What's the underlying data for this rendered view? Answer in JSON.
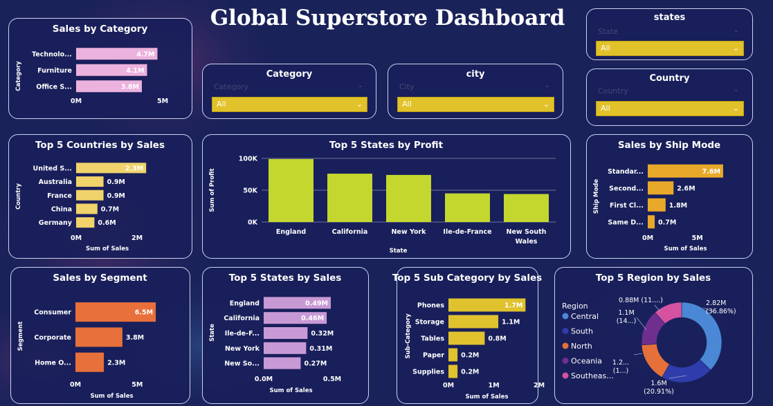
{
  "dashboard_title": "Global Superstore Dashboard",
  "colors": {
    "background": "#1a225a",
    "pink": "#ebb2dd",
    "yellow_light": "#f0d36a",
    "lime": "#c3d72e",
    "orange_ship": "#e8a92a",
    "orange_segment": "#e8703a",
    "purple": "#c89ad5",
    "yellow_sub": "#dfc22e",
    "slicer": "#e2c22a"
  },
  "slicers": {
    "states": {
      "title": "states",
      "field": "State",
      "value": "All"
    },
    "category": {
      "title": "Category",
      "field": "Category",
      "value": "All"
    },
    "city": {
      "title": "city",
      "field": "City",
      "value": "All"
    },
    "country": {
      "title": "Country",
      "field": "Country",
      "value": "All"
    }
  },
  "chart_data": [
    {
      "id": "sales_by_category",
      "type": "bar",
      "orientation": "horizontal",
      "title": "Sales by Category",
      "ylabel": "Category",
      "xlabel": "",
      "categories": [
        "Technolo...",
        "Furniture",
        "Office S..."
      ],
      "values": [
        4.7,
        4.1,
        3.8
      ],
      "labels": [
        "4.7M",
        "4.1M",
        "3.8M"
      ],
      "xlim": [
        0,
        5
      ],
      "ticks": [
        0,
        5
      ],
      "tick_labels": [
        "0M",
        "5M"
      ],
      "color": "#ebb2dd"
    },
    {
      "id": "top5_countries",
      "type": "bar",
      "orientation": "horizontal",
      "title": "Top 5 Countries by Sales",
      "ylabel": "Country",
      "xlabel": "Sum of Sales",
      "categories": [
        "United S...",
        "Australia",
        "France",
        "China",
        "Germany"
      ],
      "values": [
        2.3,
        0.9,
        0.9,
        0.7,
        0.6
      ],
      "labels": [
        "2.3M",
        "0.9M",
        "0.9M",
        "0.7M",
        "0.6M"
      ],
      "xlim": [
        0,
        2.5
      ],
      "ticks": [
        0,
        2
      ],
      "tick_labels": [
        "0M",
        "2M"
      ],
      "color": "#f0d36a"
    },
    {
      "id": "top5_states_profit",
      "type": "bar",
      "orientation": "vertical",
      "title": "Top 5 States by Profit",
      "ylabel": "Sum of Profit",
      "xlabel": "State",
      "categories": [
        "England",
        "California",
        "New York",
        "Ile-de-France",
        "New South Wales"
      ],
      "values": [
        99,
        76,
        74,
        45,
        44
      ],
      "ylim": [
        0,
        100
      ],
      "ticks": [
        0,
        50,
        100
      ],
      "tick_labels": [
        "0K",
        "50K",
        "100K"
      ],
      "color": "#c3d72e"
    },
    {
      "id": "sales_by_ship_mode",
      "type": "bar",
      "orientation": "horizontal",
      "title": "Sales by Ship Mode",
      "ylabel": "Ship Mode",
      "xlabel": "Sum of Sales",
      "categories": [
        "Standar...",
        "Second...",
        "First Cl...",
        "Same D..."
      ],
      "values": [
        7.6,
        2.6,
        1.8,
        0.7
      ],
      "labels": [
        "7.6M",
        "2.6M",
        "1.8M",
        "0.7M"
      ],
      "xlim": [
        0,
        9
      ],
      "ticks": [
        0,
        5
      ],
      "tick_labels": [
        "0M",
        "5M"
      ],
      "color": "#e8a92a"
    },
    {
      "id": "sales_by_segment",
      "type": "bar",
      "orientation": "horizontal",
      "title": "Sales by Segment",
      "ylabel": "Segment",
      "xlabel": "Sum of Sales",
      "categories": [
        "Consumer",
        "Corporate",
        "Home O..."
      ],
      "values": [
        6.5,
        3.8,
        2.3
      ],
      "labels": [
        "6.5M",
        "3.8M",
        "2.3M"
      ],
      "xlim": [
        0,
        7
      ],
      "ticks": [
        0,
        5
      ],
      "tick_labels": [
        "0M",
        "5M"
      ],
      "color": "#e8703a"
    },
    {
      "id": "top5_states_sales",
      "type": "bar",
      "orientation": "horizontal",
      "title": "Top 5 States by Sales",
      "ylabel": "State",
      "xlabel": "Sum of Sales",
      "categories": [
        "England",
        "California",
        "Ile-de-F...",
        "New York",
        "New So..."
      ],
      "values": [
        0.49,
        0.46,
        0.32,
        0.31,
        0.27
      ],
      "labels": [
        "0.49M",
        "0.46M",
        "0.32M",
        "0.31M",
        "0.27M"
      ],
      "xlim": [
        0,
        0.5
      ],
      "ticks": [
        0,
        0.5
      ],
      "tick_labels": [
        "0.0M",
        "0.5M"
      ],
      "color": "#c89ad5"
    },
    {
      "id": "top5_subcategory",
      "type": "bar",
      "orientation": "horizontal",
      "title": "Top 5 Sub Category by Sales",
      "ylabel": "Sub-Category",
      "xlabel": "Sum of Sales",
      "categories": [
        "Phones",
        "Storage",
        "Tables",
        "Paper",
        "Supplies"
      ],
      "values": [
        1.7,
        1.1,
        0.8,
        0.2,
        0.2
      ],
      "labels": [
        "1.7M",
        "1.1M",
        "0.8M",
        "0.2M",
        "0.2M"
      ],
      "xlim": [
        0,
        2
      ],
      "ticks": [
        0,
        1,
        2
      ],
      "tick_labels": [
        "0M",
        "1M",
        "2M"
      ],
      "color": "#dfc22e"
    },
    {
      "id": "top5_region",
      "type": "pie",
      "donut": true,
      "title": "Top 5 Region by Sales",
      "legend_title": "Region",
      "categories": [
        "Central",
        "South",
        "North",
        "Oceania",
        "Southeas..."
      ],
      "values": [
        2.82,
        1.6,
        1.2,
        1.1,
        0.88
      ],
      "percent_labels": [
        "(36.86%)",
        "(20.91%)",
        "(1...)",
        "(14...)",
        "(11....)"
      ],
      "value_labels": [
        "2.82M",
        "1.6M",
        "1.2...",
        "1.1M",
        "0.88M"
      ],
      "colors": [
        "#4a88d6",
        "#2e3dab",
        "#e6703a",
        "#6e2f8f",
        "#d4529f"
      ]
    }
  ]
}
